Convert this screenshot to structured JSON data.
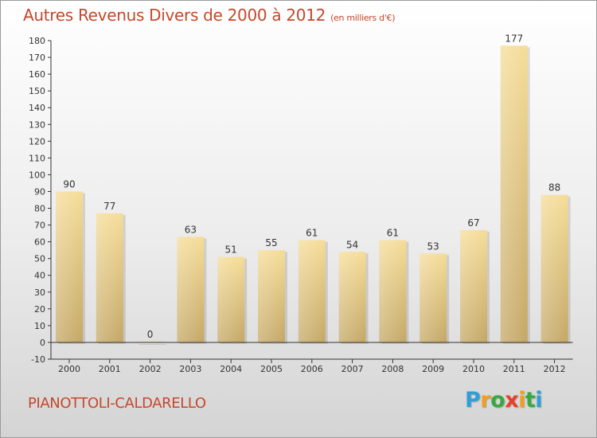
{
  "header": {
    "title": "Autres Revenus Divers de 2000 à 2012",
    "subtitle": "(en milliers d'€)"
  },
  "footer": {
    "commune": "PIANOTTOLI-CALDARELLO",
    "logo_letters": [
      "P",
      "r",
      "o",
      "x",
      "i",
      "t",
      "i"
    ]
  },
  "colors": {
    "title": "#c6472b",
    "bar_top": "#f5dc97",
    "bar_bottom": "#c4a765",
    "logo": [
      "#2f9fd6",
      "#f0a020",
      "#3aa840",
      "#e8402a",
      "#f0a020",
      "#3aa840",
      "#2f9fd6"
    ]
  },
  "chart_data": {
    "type": "bar",
    "title": "Autres Revenus Divers de 2000 à 2012",
    "subtitle": "(en milliers d'€)",
    "categories": [
      "2000",
      "2001",
      "2002",
      "2003",
      "2004",
      "2005",
      "2006",
      "2007",
      "2008",
      "2009",
      "2010",
      "2011",
      "2012"
    ],
    "values": [
      90,
      77,
      0,
      63,
      51,
      55,
      61,
      54,
      61,
      53,
      67,
      177,
      88
    ],
    "ylim": [
      -10,
      180
    ],
    "yticks": [
      -10,
      0,
      10,
      20,
      30,
      40,
      50,
      60,
      70,
      80,
      90,
      100,
      110,
      120,
      130,
      140,
      150,
      160,
      170,
      180
    ],
    "grid": false,
    "legend": "none"
  }
}
